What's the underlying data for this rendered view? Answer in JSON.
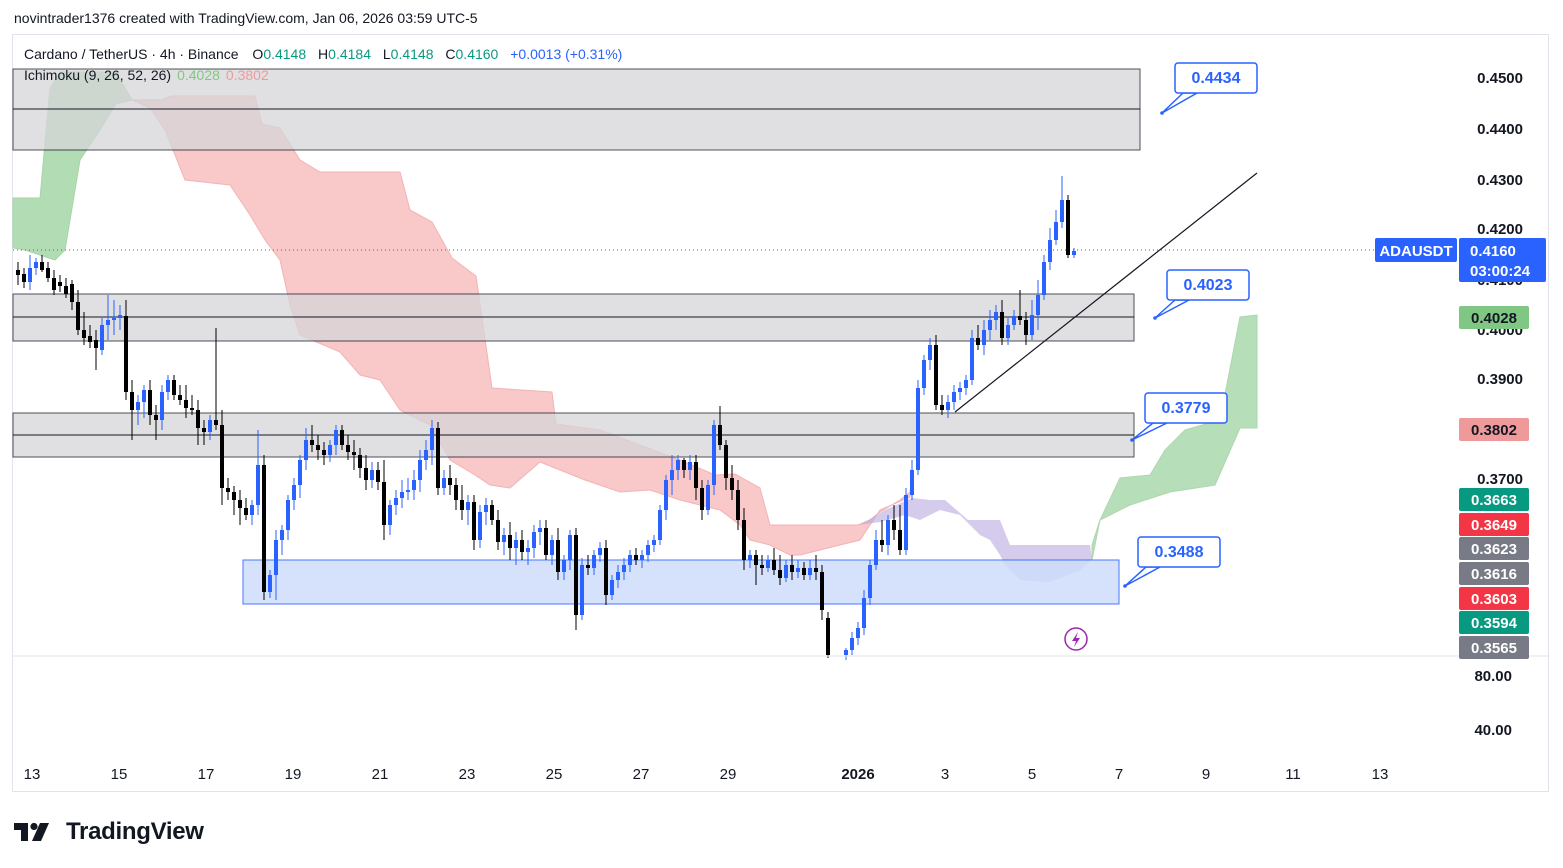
{
  "header": {
    "meta": "novintrader1376 created with TradingView.com, Jan 06, 2026 03:59 UTC-5"
  },
  "legend": {
    "symbol": "Cardano / TetherUS · 4h · Binance",
    "o_label": "O",
    "o": "0.4148",
    "h_label": "H",
    "h": "0.4184",
    "l_label": "L",
    "l": "0.4148",
    "c_label": "C",
    "c": "0.4160",
    "change": "+0.0013 (+0.31%)"
  },
  "indicator": {
    "name": "Ichimoku (9, 26, 52, 26)",
    "value1": "0.4028",
    "value2": "0.3802"
  },
  "price_axis": {
    "ticks": [
      "0.4500",
      "0.4400",
      "0.4300",
      "0.4200",
      "0.4100",
      "0.4000",
      "0.3900",
      "0.3700"
    ],
    "osc_ticks": [
      "80.00",
      "40.00"
    ],
    "badges": [
      {
        "label": "0.4028",
        "color": "#81c784",
        "text_color": "#131722"
      },
      {
        "label": "0.3802",
        "color": "#ef9a9a",
        "text_color": "#131722"
      },
      {
        "label": "0.3663",
        "color": "#089981",
        "text_color": "#ffffff"
      },
      {
        "label": "0.3649",
        "color": "#f23645",
        "text_color": "#ffffff"
      },
      {
        "label": "0.3623",
        "color": "#787b86",
        "text_color": "#ffffff"
      },
      {
        "label": "0.3616",
        "color": "#787b86",
        "text_color": "#ffffff"
      },
      {
        "label": "0.3603",
        "color": "#f23645",
        "text_color": "#ffffff"
      },
      {
        "label": "0.3594",
        "color": "#089981",
        "text_color": "#ffffff"
      },
      {
        "label": "0.3565",
        "color": "#787b86",
        "text_color": "#ffffff"
      }
    ],
    "current": {
      "symbol": "ADAUSDT",
      "price": "0.4160",
      "countdown": "03:00:24",
      "color": "#2962ff"
    }
  },
  "time_axis": [
    "13",
    "15",
    "17",
    "19",
    "21",
    "23",
    "25",
    "27",
    "29",
    "2026",
    "3",
    "5",
    "7",
    "9",
    "11",
    "13"
  ],
  "callouts": [
    "0.4434",
    "0.4023",
    "0.3779",
    "0.3488"
  ],
  "colors": {
    "bull": "#2962ff",
    "bear": "#000000",
    "cloud_green": "#a5d6a7",
    "cloud_red": "#f8b6b6",
    "zone_gray": "#d6d6d9",
    "zone_blue": "#cfdcfb",
    "accent": "#2962ff"
  },
  "brand": {
    "name": "TradingView"
  }
}
